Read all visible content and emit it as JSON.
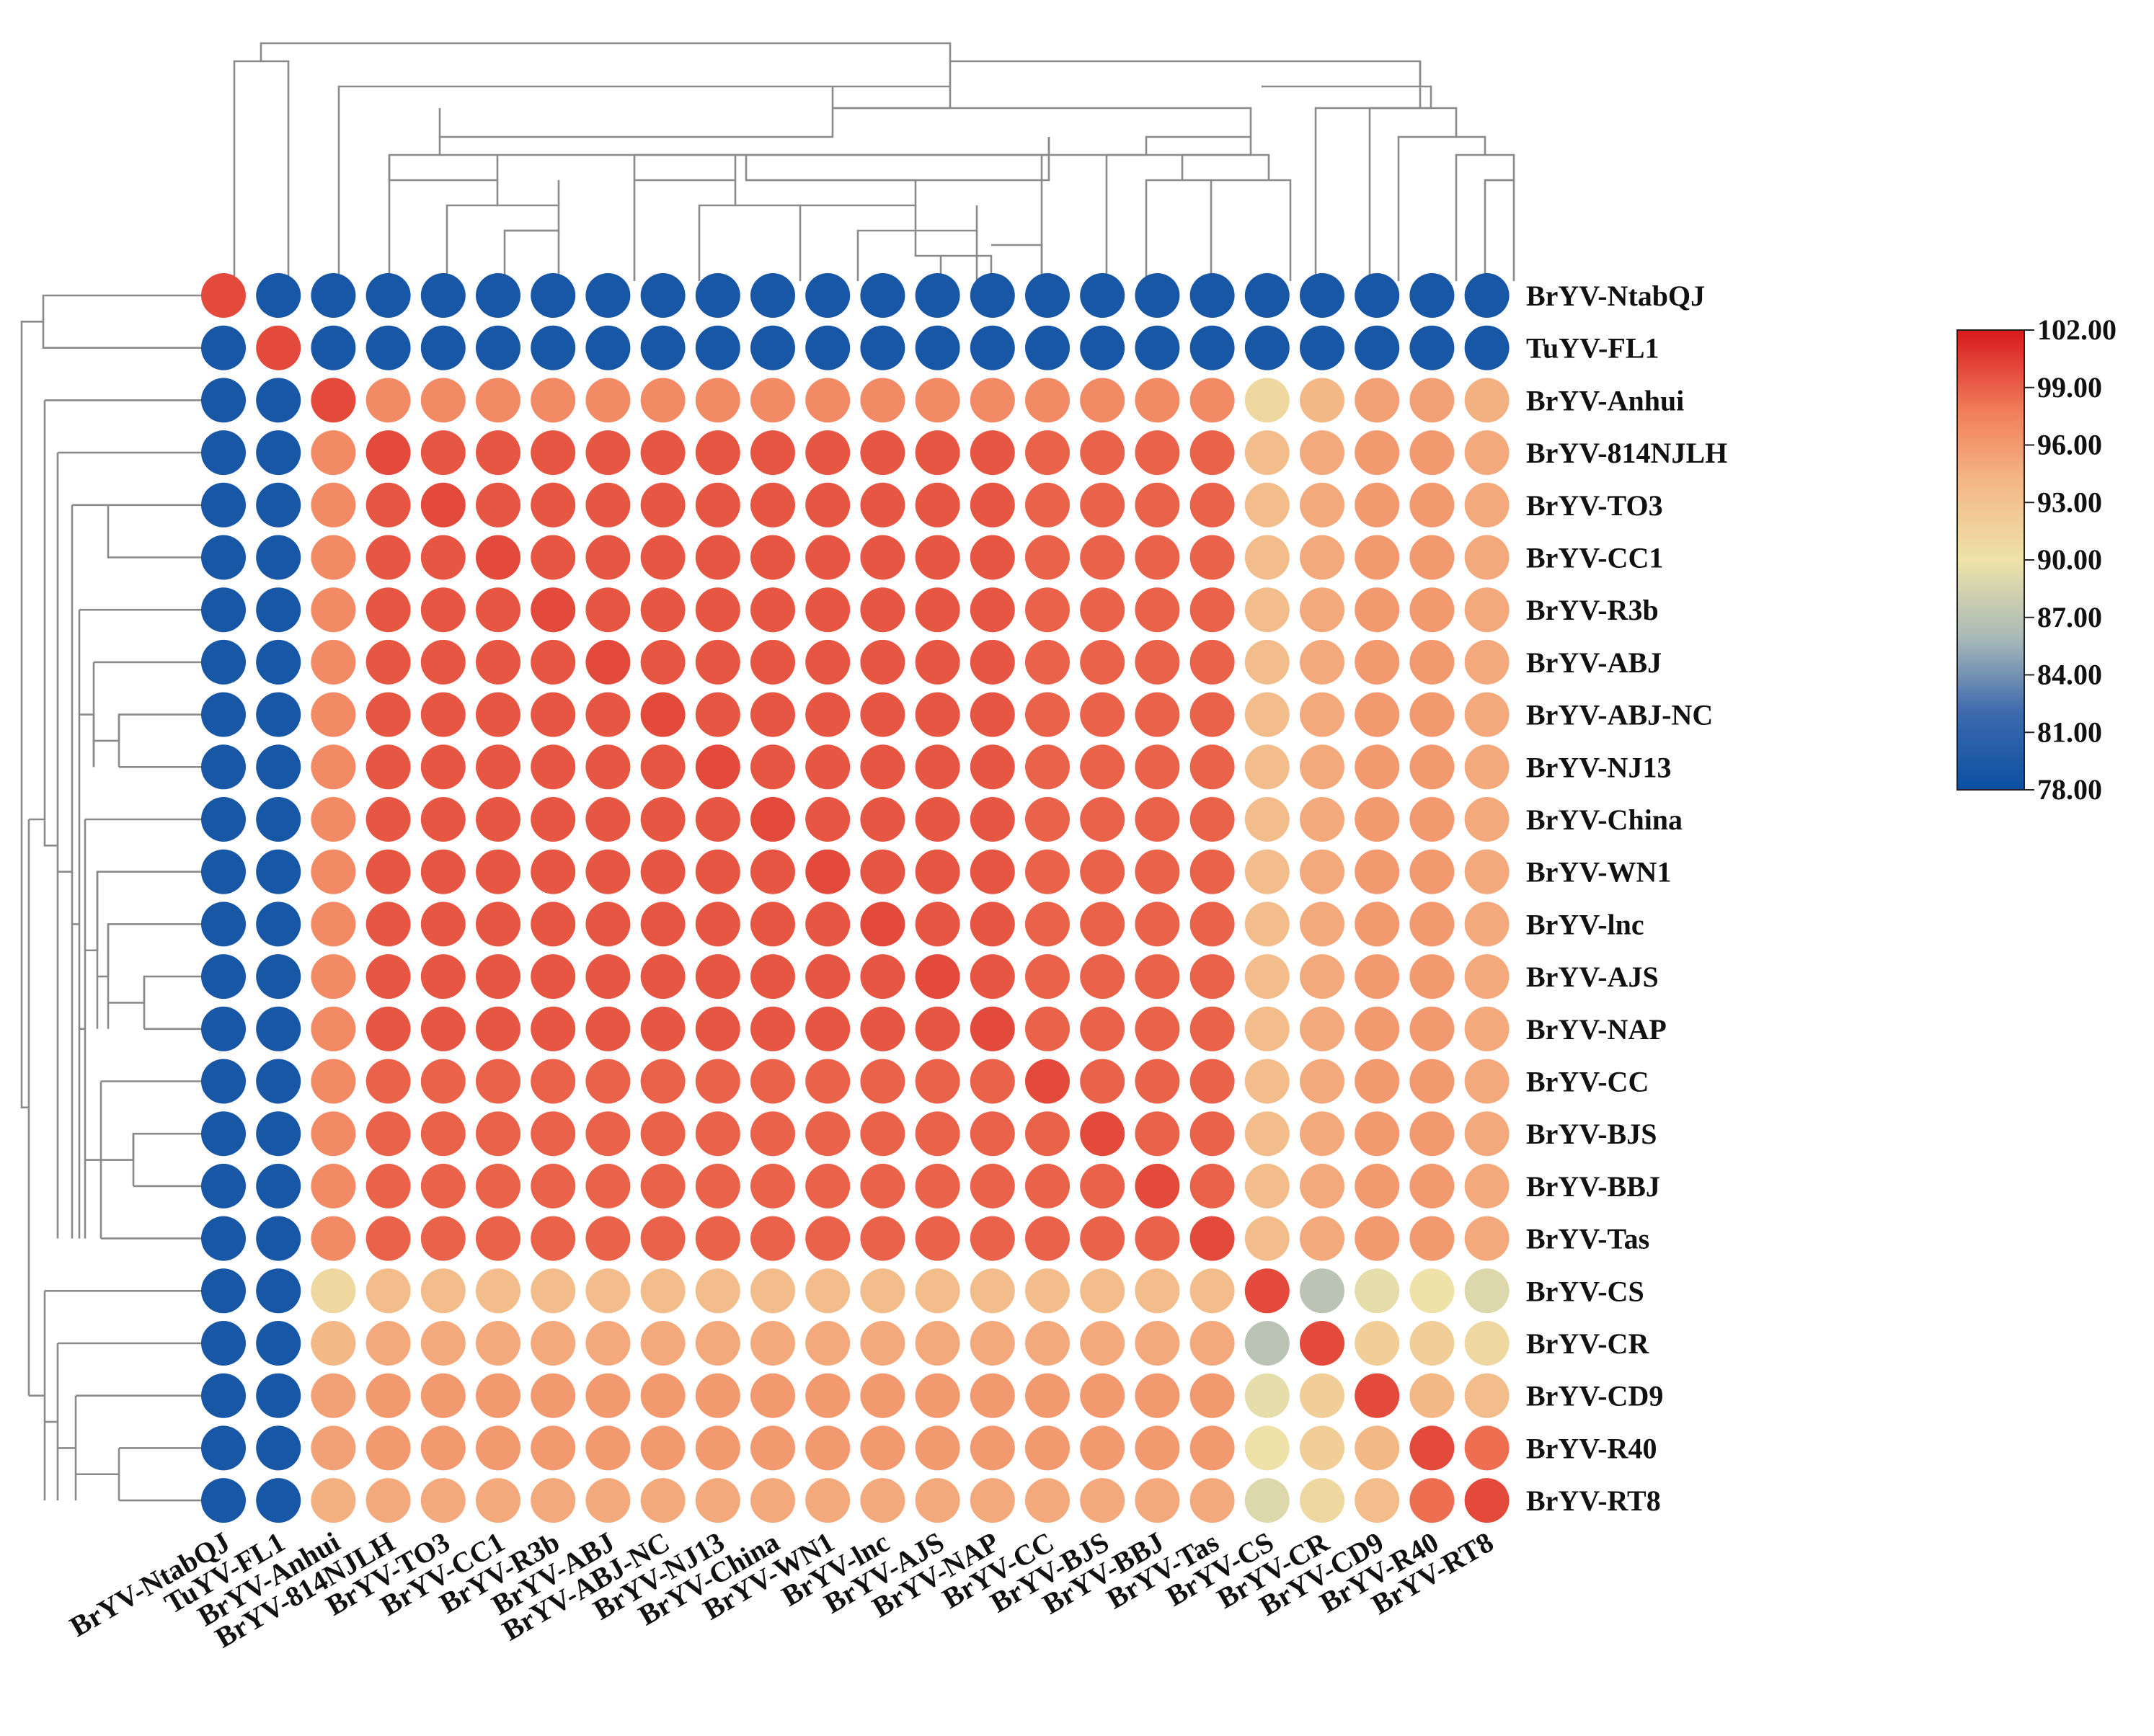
{
  "chart_data": {
    "type": "heatmap",
    "style": "circle-heatmap with hierarchical clustering dendrograms",
    "title": "",
    "xlabel": "",
    "ylabel": "",
    "labels": [
      "BrYV-NtabQJ",
      "TuYV-FL1",
      "BrYV-Anhui",
      "BrYV-814NJLH",
      "BrYV-TO3",
      "BrYV-CC1",
      "BrYV-R3b",
      "BrYV-ABJ",
      "BrYV-ABJ-NC",
      "BrYV-NJ13",
      "BrYV-China",
      "BrYV-WN1",
      "BrYV-lnc",
      "BrYV-AJS",
      "BrYV-NAP",
      "BrYV-CC",
      "BrYV-BJS",
      "BrYV-BBJ",
      "BrYV-Tas",
      "BrYV-CS",
      "BrYV-CR",
      "BrYV-CD9",
      "BrYV-R40",
      "BrYV-RT8"
    ],
    "values": [
      [
        100,
        79,
        79,
        79,
        79,
        79,
        79,
        79,
        79,
        79,
        79,
        79,
        79,
        79,
        79,
        79,
        79,
        79,
        79,
        79,
        79,
        79,
        79,
        79
      ],
      [
        79,
        100,
        79,
        79,
        79,
        79,
        79,
        79,
        79,
        79,
        79,
        79,
        79,
        79,
        79,
        79,
        79,
        79,
        79,
        79,
        79,
        79,
        79,
        79
      ],
      [
        79,
        79,
        100,
        97,
        97,
        97,
        97,
        97,
        97,
        97,
        97,
        97,
        97,
        97,
        97,
        97,
        97,
        97,
        97,
        91,
        94,
        95.5,
        95.5,
        94.5
      ],
      [
        79,
        79,
        97,
        100,
        99.5,
        99.5,
        99.5,
        99.5,
        99.5,
        99.5,
        99.5,
        99.5,
        99.5,
        99.5,
        99.5,
        99,
        99,
        99,
        99,
        93.5,
        95,
        96,
        96,
        95
      ],
      [
        79,
        79,
        97,
        99.5,
        100,
        99.5,
        99.5,
        99.5,
        99.5,
        99.5,
        99.5,
        99.5,
        99.5,
        99.5,
        99.5,
        99,
        99,
        99,
        99,
        93.5,
        95,
        96,
        96,
        95
      ],
      [
        79,
        79,
        97,
        99.5,
        99.5,
        100,
        99.5,
        99.5,
        99.5,
        99.5,
        99.5,
        99.5,
        99.5,
        99.5,
        99.5,
        99,
        99,
        99,
        99,
        93.5,
        95,
        96,
        96,
        95
      ],
      [
        79,
        79,
        97,
        99.5,
        99.5,
        99.5,
        100,
        99.5,
        99.5,
        99.5,
        99.5,
        99.5,
        99.5,
        99.5,
        99.5,
        99,
        99,
        99,
        99,
        93.5,
        95,
        96,
        96,
        95
      ],
      [
        79,
        79,
        97,
        99.5,
        99.5,
        99.5,
        99.5,
        100,
        99.5,
        99.5,
        99.5,
        99.5,
        99.5,
        99.5,
        99.5,
        99,
        99,
        99,
        99,
        93.5,
        95,
        96,
        96,
        95
      ],
      [
        79,
        79,
        97,
        99.5,
        99.5,
        99.5,
        99.5,
        99.5,
        100,
        99.5,
        99.5,
        99.5,
        99.5,
        99.5,
        99.5,
        99,
        99,
        99,
        99,
        93.5,
        95,
        96,
        96,
        95
      ],
      [
        79,
        79,
        97,
        99.5,
        99.5,
        99.5,
        99.5,
        99.5,
        99.5,
        100,
        99.5,
        99.5,
        99.5,
        99.5,
        99.5,
        99,
        99,
        99,
        99,
        93.5,
        95,
        96,
        96,
        95
      ],
      [
        79,
        79,
        97,
        99.5,
        99.5,
        99.5,
        99.5,
        99.5,
        99.5,
        99.5,
        100,
        99.5,
        99.5,
        99.5,
        99.5,
        99,
        99,
        99,
        99,
        93.5,
        95,
        96,
        96,
        95
      ],
      [
        79,
        79,
        97,
        99.5,
        99.5,
        99.5,
        99.5,
        99.5,
        99.5,
        99.5,
        99.5,
        100,
        99.5,
        99.5,
        99.5,
        99,
        99,
        99,
        99,
        93.5,
        95,
        96,
        96,
        95
      ],
      [
        79,
        79,
        97,
        99.5,
        99.5,
        99.5,
        99.5,
        99.5,
        99.5,
        99.5,
        99.5,
        99.5,
        100,
        99.5,
        99.5,
        99,
        99,
        99,
        99,
        93.5,
        95,
        96,
        96,
        95
      ],
      [
        79,
        79,
        97,
        99.5,
        99.5,
        99.5,
        99.5,
        99.5,
        99.5,
        99.5,
        99.5,
        99.5,
        99.5,
        100,
        99.5,
        99,
        99,
        99,
        99,
        93.5,
        95,
        96,
        96,
        95
      ],
      [
        79,
        79,
        97,
        99.5,
        99.5,
        99.5,
        99.5,
        99.5,
        99.5,
        99.5,
        99.5,
        99.5,
        99.5,
        99.5,
        100,
        99,
        99,
        99,
        99,
        93.5,
        95,
        96,
        96,
        95
      ],
      [
        79,
        79,
        97,
        99,
        99,
        99,
        99,
        99,
        99,
        99,
        99,
        99,
        99,
        99,
        99,
        100,
        99,
        99,
        99,
        93.5,
        95,
        96,
        96,
        95
      ],
      [
        79,
        79,
        97,
        99,
        99,
        99,
        99,
        99,
        99,
        99,
        99,
        99,
        99,
        99,
        99,
        99,
        100,
        99,
        99,
        93.5,
        95,
        96,
        96,
        95
      ],
      [
        79,
        79,
        97,
        99,
        99,
        99,
        99,
        99,
        99,
        99,
        99,
        99,
        99,
        99,
        99,
        99,
        99,
        100,
        99,
        93.5,
        95,
        96,
        96,
        95
      ],
      [
        79,
        79,
        97,
        99,
        99,
        99,
        99,
        99,
        99,
        99,
        99,
        99,
        99,
        99,
        99,
        99,
        99,
        99,
        100,
        93.5,
        95,
        96,
        96,
        95
      ],
      [
        79,
        79,
        91,
        93.5,
        93.5,
        93.5,
        93.5,
        93.5,
        93.5,
        93.5,
        93.5,
        93.5,
        93.5,
        93.5,
        93.5,
        93.5,
        93.5,
        93.5,
        93.5,
        100,
        87,
        89.5,
        90,
        89
      ],
      [
        79,
        79,
        94,
        95,
        95,
        95,
        95,
        95,
        95,
        95,
        95,
        95,
        95,
        95,
        95,
        95,
        95,
        95,
        95,
        87,
        100,
        92,
        92,
        91
      ],
      [
        79,
        79,
        95.5,
        96,
        96,
        96,
        96,
        96,
        96,
        96,
        96,
        96,
        96,
        96,
        96,
        96,
        96,
        96,
        96,
        89.5,
        92,
        100,
        94,
        93.5
      ],
      [
        79,
        79,
        95.5,
        96,
        96,
        96,
        96,
        96,
        96,
        96,
        96,
        96,
        96,
        96,
        96,
        96,
        96,
        96,
        96,
        90,
        92,
        94,
        100,
        98.5
      ],
      [
        79,
        79,
        94.5,
        95,
        95,
        95,
        95,
        95,
        95,
        95,
        95,
        95,
        95,
        95,
        95,
        95,
        95,
        95,
        95,
        89,
        91,
        93.5,
        98.5,
        100
      ]
    ],
    "colorbar": {
      "min": 78.0,
      "max": 102.0,
      "ticks": [
        "102.00",
        "99.00",
        "96.00",
        "93.00",
        "90.00",
        "87.00",
        "84.00",
        "81.00",
        "78.00"
      ],
      "stops": [
        "#d7191c",
        "#f17a5a",
        "#f3b886",
        "#eee2a8",
        "#a9b9b8",
        "#3e6aad",
        "#0b4fa3"
      ]
    },
    "dendrogram": "hierarchical clustering on rows and columns (same order)"
  }
}
